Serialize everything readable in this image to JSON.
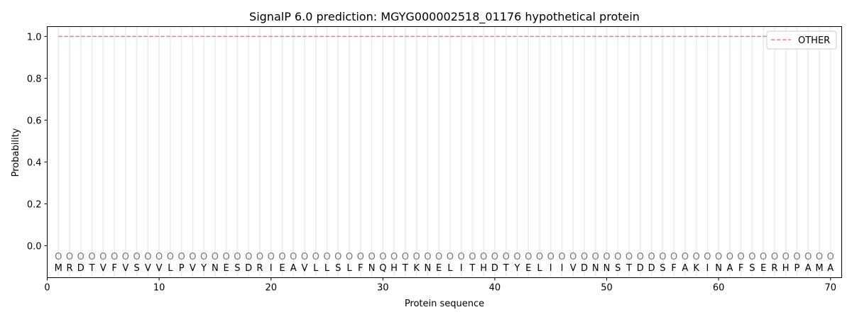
{
  "chart_data": {
    "type": "line",
    "title": "SignalP 6.0 prediction: MGYG000002518_01176 hypothetical protein",
    "xlabel": "Protein sequence",
    "ylabel": "Probability",
    "xlim": [
      0,
      71
    ],
    "ylim": [
      -0.153,
      1.047
    ],
    "xticks": [
      0,
      10,
      20,
      30,
      40,
      50,
      60,
      70
    ],
    "yticks": [
      0.0,
      0.2,
      0.4,
      0.6,
      0.8,
      1.0
    ],
    "ytick_labels": [
      "0.0",
      "0.2",
      "0.4",
      "0.6",
      "0.8",
      "1.0"
    ],
    "grid": "vertical light lines at each residue",
    "legend_position": "top-right",
    "sequence": [
      "M",
      "R",
      "D",
      "T",
      "V",
      "F",
      "V",
      "S",
      "V",
      "V",
      "L",
      "P",
      "V",
      "Y",
      "N",
      "E",
      "S",
      "D",
      "R",
      "I",
      "E",
      "A",
      "V",
      "L",
      "L",
      "S",
      "L",
      "F",
      "N",
      "Q",
      "H",
      "T",
      "K",
      "N",
      "E",
      "L",
      "I",
      "T",
      "H",
      "D",
      "T",
      "Y",
      "E",
      "L",
      "I",
      "I",
      "V",
      "D",
      "N",
      "N",
      "S",
      "T",
      "D",
      "D",
      "S",
      "F",
      "A",
      "K",
      "I",
      "N",
      "A",
      "F",
      "S",
      "E",
      "R",
      "H",
      "P",
      "A",
      "M",
      "A"
    ],
    "predicted_label": "O",
    "series": [
      {
        "name": "OTHER",
        "color": "#f08080",
        "style": "dashed",
        "x_start": 1,
        "x_end": 70,
        "value": 1.0
      }
    ]
  }
}
